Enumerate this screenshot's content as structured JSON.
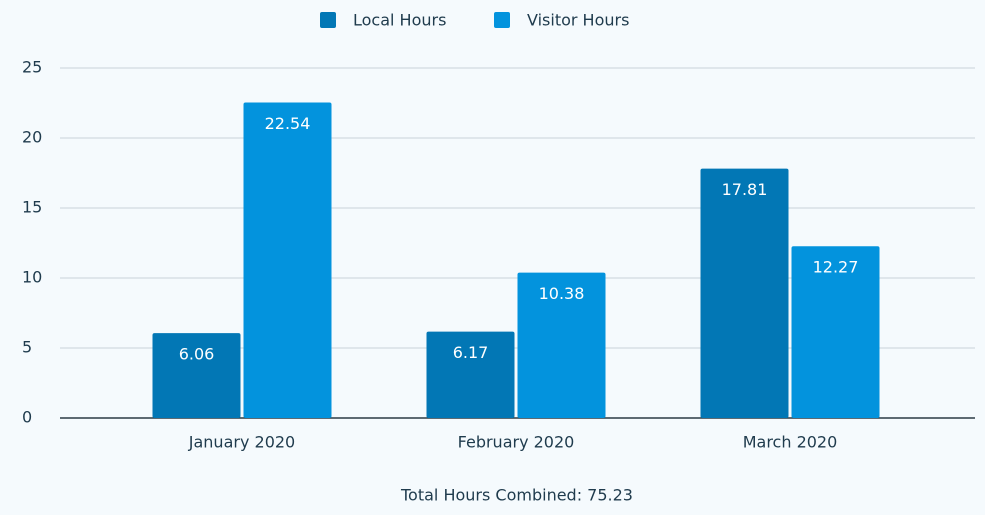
{
  "chart_data": {
    "type": "bar",
    "categories": [
      "January 2020",
      "February 2020",
      "March 2020"
    ],
    "series": [
      {
        "name": "Local Hours",
        "color": "#0277b5",
        "values": [
          6.06,
          6.17,
          17.81
        ]
      },
      {
        "name": "Visitor Hours",
        "color": "#0393dd",
        "values": [
          22.54,
          10.38,
          12.27
        ]
      }
    ],
    "ylim": [
      0,
      25
    ],
    "yticks": [
      0,
      5,
      10,
      15,
      20,
      25
    ],
    "grid": true,
    "footer": "Total Hours Combined: 75.23"
  }
}
